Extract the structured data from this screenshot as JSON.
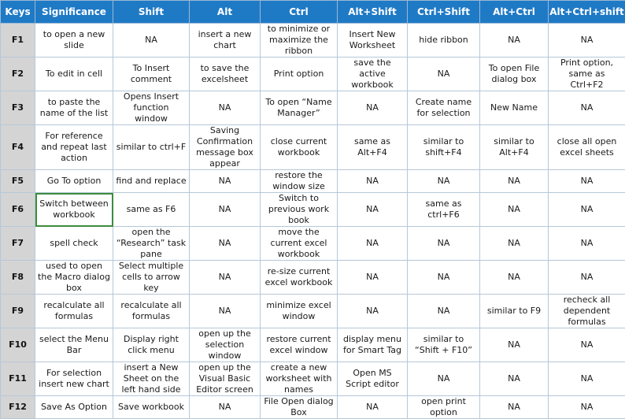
{
  "columns": [
    "Keys",
    "Significance",
    "Shift",
    "Alt",
    "Ctrl",
    "Alt+Shift",
    "Ctrl+Shift",
    "Alt+Ctrl",
    "Alt+Ctrl+shift"
  ],
  "rows": [
    [
      "F1",
      "to open a new slide",
      "NA",
      "insert a new chart",
      "to minimize or maximize the ribbon",
      "Insert New Worksheet",
      "hide ribbon",
      "NA",
      "NA"
    ],
    [
      "F2",
      "To edit in cell",
      "To Insert comment",
      "to save the excelsheet",
      "Print option",
      "save the active workbook",
      "NA",
      "To open File dialog box",
      "Print option, same as Ctrl+F2"
    ],
    [
      "F3",
      "to paste the name of the list",
      "Opens Insert function window",
      "NA",
      "To open “Name Manager”",
      "NA",
      "Create name for selection",
      "New Name",
      "NA"
    ],
    [
      "F4",
      "For reference and repeat last action",
      "similar to ctrl+F",
      "Saving Confirmation message box appear",
      "close current workbook",
      "same as Alt+F4",
      "similar to shift+F4",
      "similar to Alt+F4",
      "close all open excel sheets"
    ],
    [
      "F5",
      "Go To option",
      "find and replace",
      "NA",
      "restore the window size",
      "NA",
      "NA",
      "NA",
      "NA"
    ],
    [
      "F6",
      "Switch between workbook",
      "same as F6",
      "NA",
      "Switch to previous work book",
      "NA",
      "same as ctrl+F6",
      "NA",
      "NA"
    ],
    [
      "F7",
      "spell check",
      "open the “Research” task pane",
      "NA",
      "move the current excel workbook",
      "NA",
      "NA",
      "NA",
      "NA"
    ],
    [
      "F8",
      "used to open the Macro dialog box",
      "Select multiple cells to arrow key",
      "NA",
      "re-size current excel workbook",
      "NA",
      "NA",
      "NA",
      "NA"
    ],
    [
      "F9",
      "recalculate all formulas",
      "recalculate all formulas",
      "NA",
      "minimize excel window",
      "NA",
      "NA",
      "similar to F9",
      "recheck all dependent formulas"
    ],
    [
      "F10",
      "select the Menu Bar",
      "Display right click menu",
      "open up the selection window",
      "restore current excel window",
      "display menu for Smart Tag",
      "similar to “Shift + F10”",
      "NA",
      "NA"
    ],
    [
      "F11",
      "For selection insert new chart",
      "insert a New Sheet on the left hand side",
      "open up the Visual Basic Editor screen",
      "create a new worksheet with names",
      "Open MS Script editor",
      "NA",
      "NA",
      "NA"
    ],
    [
      "F12",
      "Save As Option",
      "Save workbook",
      "NA",
      "File Open dialog Box",
      "NA",
      "open print option",
      "NA",
      "NA"
    ]
  ],
  "colors": {
    "header_bg": "#1f7ac6",
    "header_text": "#ffffff",
    "key_bg": "#d4d4d4",
    "selection_border": "#3d8c3d"
  }
}
